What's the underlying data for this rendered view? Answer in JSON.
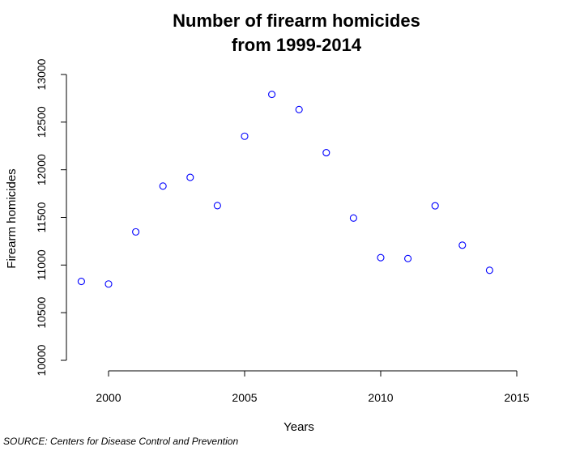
{
  "chart_data": {
    "type": "scatter",
    "title_lines": [
      "Number of firearm homicides",
      "from 1999-2014"
    ],
    "xlabel": "Years",
    "ylabel": "Firearm homicides",
    "xlim": [
      1999,
      2015
    ],
    "ylim": [
      10000,
      13000
    ],
    "x_ticks": [
      2000,
      2005,
      2010,
      2015
    ],
    "y_ticks": [
      10000,
      10500,
      11000,
      11500,
      12000,
      12500,
      13000
    ],
    "grid": false,
    "legend": "none",
    "marker": "open-circle",
    "point_color": "#0000ff",
    "x": [
      1999,
      2000,
      2001,
      2002,
      2003,
      2004,
      2005,
      2006,
      2007,
      2008,
      2009,
      2010,
      2011,
      2012,
      2013,
      2014
    ],
    "y": [
      10828,
      10801,
      11348,
      11829,
      11920,
      11624,
      12352,
      12791,
      12632,
      12179,
      11493,
      11078,
      11068,
      11622,
      11208,
      10945
    ]
  },
  "source": "SOURCE: Centers for Disease Control and Prevention"
}
